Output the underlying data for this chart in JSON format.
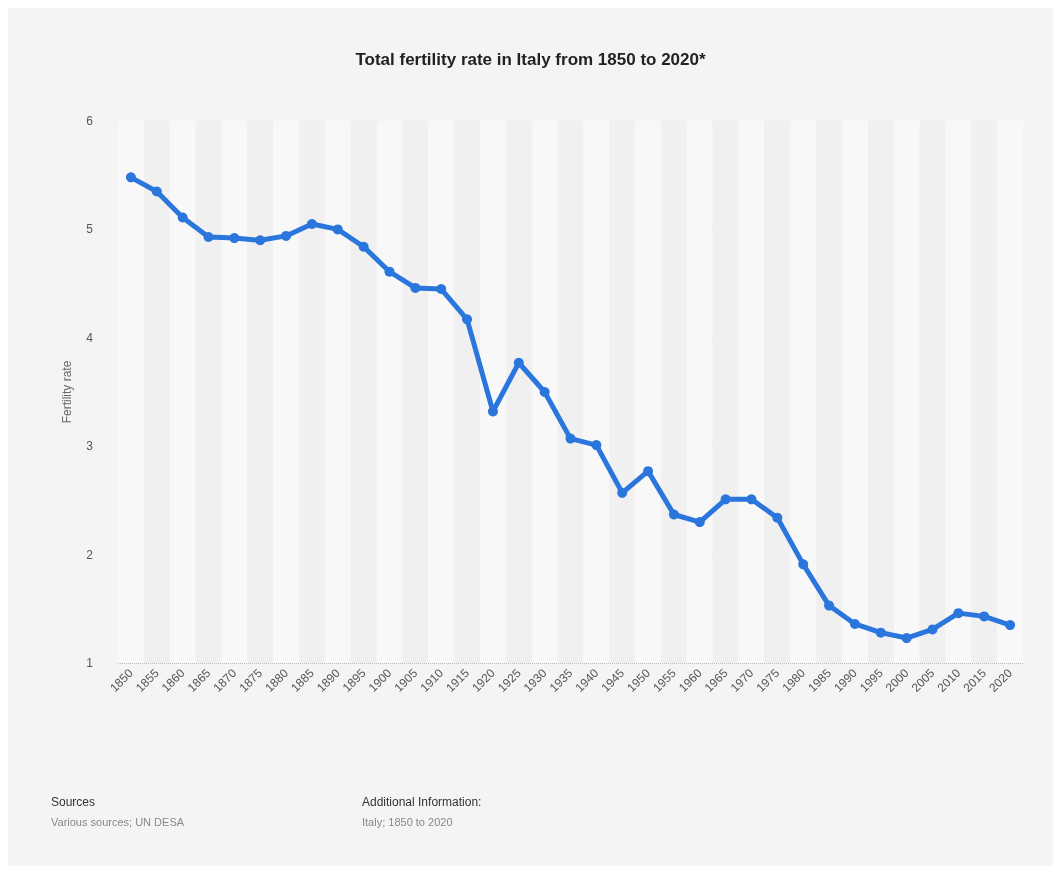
{
  "chart_data": {
    "type": "line",
    "title": "Total fertility rate in Italy from 1850 to 2020*",
    "ylabel": "Fertility rate",
    "categories": [
      "1850",
      "1855",
      "1860",
      "1865",
      "1870",
      "1875",
      "1880",
      "1885",
      "1890",
      "1895",
      "1900",
      "1905",
      "1910",
      "1915",
      "1920",
      "1925",
      "1930",
      "1935",
      "1940",
      "1945",
      "1950",
      "1955",
      "1960",
      "1965",
      "1970",
      "1975",
      "1980",
      "1985",
      "1990",
      "1995",
      "2000",
      "2005",
      "2010",
      "2015",
      "2020"
    ],
    "series": [
      {
        "color": "#2a76dd",
        "values": [
          5.48,
          5.35,
          5.11,
          4.93,
          4.92,
          4.9,
          4.94,
          5.05,
          5.0,
          4.84,
          4.61,
          4.46,
          4.45,
          4.17,
          3.32,
          3.77,
          3.5,
          3.07,
          3.01,
          2.57,
          2.77,
          2.37,
          2.3,
          2.51,
          2.51,
          2.34,
          1.91,
          1.53,
          1.36,
          1.28,
          1.23,
          1.31,
          1.46,
          1.43,
          1.35
        ]
      }
    ],
    "ylim": [
      1,
      6
    ],
    "yticks": [
      1,
      2,
      3,
      4,
      5,
      6
    ],
    "grid": "y",
    "marker": "circle",
    "line_style": "solid",
    "annotations": [
      "Sources",
      "Various sources; UN DESA",
      "Additional Information:",
      "Italy; 1850 to 2020"
    ]
  }
}
